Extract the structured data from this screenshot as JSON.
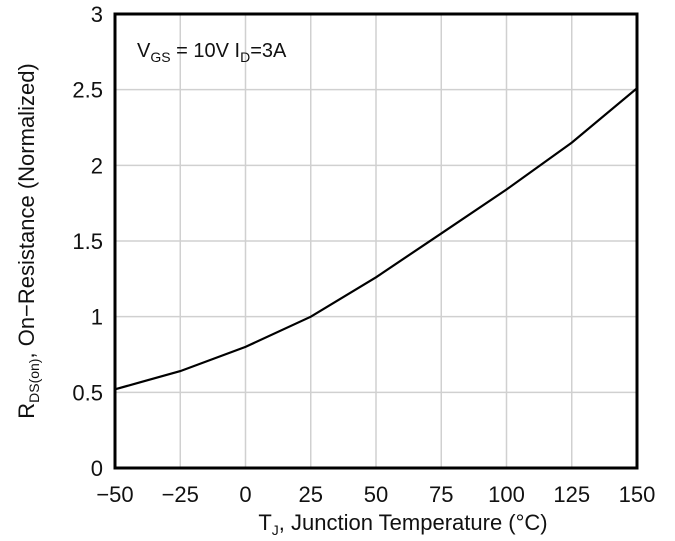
{
  "chart_data": {
    "type": "line",
    "title": "",
    "xlabel": {
      "base": "T",
      "sub": "J",
      "rest": ", Junction Temperature (°C)"
    },
    "ylabel": {
      "base": "R",
      "sub": "DS(on)",
      "rest": ", On−Resistance (Normalized)"
    },
    "annotation": {
      "v": "V",
      "v_sub": "GS",
      "v_rest": " = 10V ",
      "i": "I",
      "i_sub": "D",
      "i_rest": "=3A"
    },
    "xlim": [
      -50,
      150
    ],
    "ylim": [
      0,
      3
    ],
    "xticks": [
      -50,
      -25,
      0,
      25,
      50,
      75,
      100,
      125,
      150
    ],
    "xtick_labels": [
      "−50",
      "−25",
      "0",
      "25",
      "50",
      "75",
      "100",
      "125",
      "150"
    ],
    "yticks": [
      0,
      0.5,
      1,
      1.5,
      2,
      2.5,
      3
    ],
    "ytick_labels": [
      "0",
      "0.5",
      "1",
      "1.5",
      "2",
      "2.5",
      "3"
    ],
    "grid": true,
    "series": [
      {
        "x": [
          -50,
          -25,
          0,
          25,
          50,
          75,
          100,
          125,
          150
        ],
        "y": [
          0.52,
          0.64,
          0.8,
          1.0,
          1.26,
          1.55,
          1.84,
          2.15,
          2.51
        ]
      }
    ]
  }
}
